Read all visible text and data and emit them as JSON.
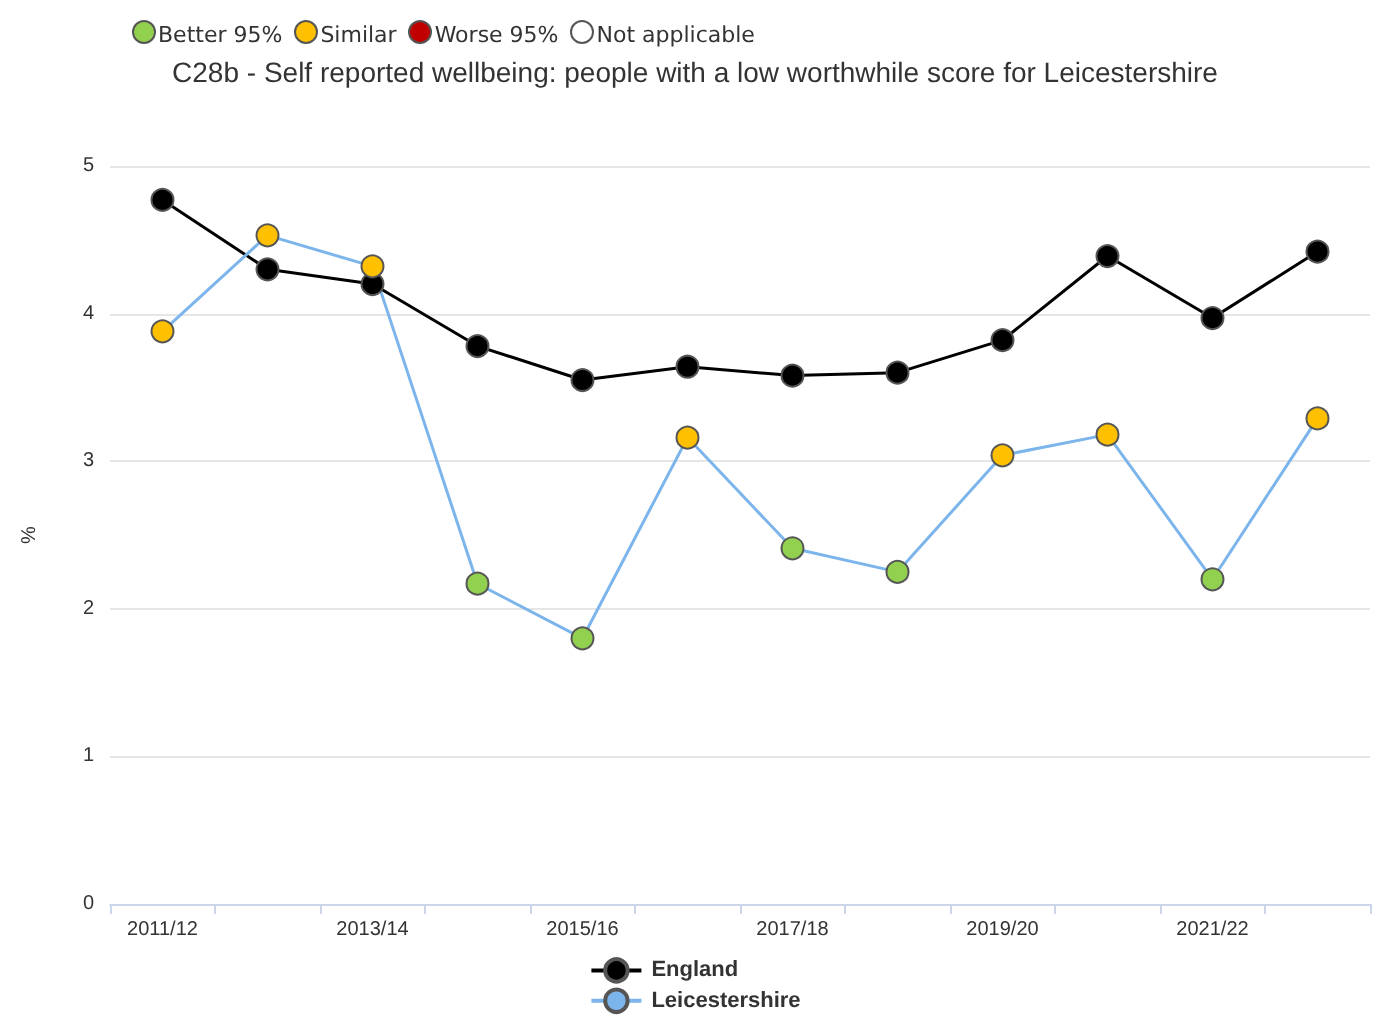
{
  "chart_data": {
    "type": "line",
    "title": "C28b - Self reported wellbeing: people with a low worthwhile score for Leicestershire",
    "annotations": [
      "Better 95%",
      "Similar",
      "Worse 95%",
      "Not applicable"
    ],
    "ylabel": "%",
    "categories": [
      "2011/12",
      null,
      "2013/14",
      null,
      "2015/16",
      null,
      "2017/18",
      null,
      "2019/20",
      null,
      "2021/22",
      null
    ],
    "series": [
      {
        "name": "England",
        "color": "#000000",
        "values": [
          4.77,
          4.3,
          4.2,
          3.78,
          3.55,
          3.64,
          3.58,
          3.6,
          3.82,
          4.39,
          3.97,
          4.42
        ]
      },
      {
        "name": "Leicestershire",
        "color": "#7cb5ec",
        "colors": [
          "#ffc000",
          "#ffc000",
          "#ffc000",
          "#92d050",
          "#92d050",
          "#ffc000",
          "#92d050",
          "#92d050",
          "#ffc000",
          "#ffc000",
          "#92d050",
          "#ffc000"
        ],
        "values": [
          3.88,
          4.53,
          4.32,
          2.17,
          1.8,
          3.16,
          2.41,
          2.25,
          3.04,
          3.18,
          2.2,
          3.29
        ]
      }
    ],
    "ylim": [
      0,
      5
    ],
    "yticks": [
      0,
      1,
      2,
      3,
      4,
      5
    ],
    "grid": "y",
    "legend": "bottom",
    "marker": "circle"
  }
}
